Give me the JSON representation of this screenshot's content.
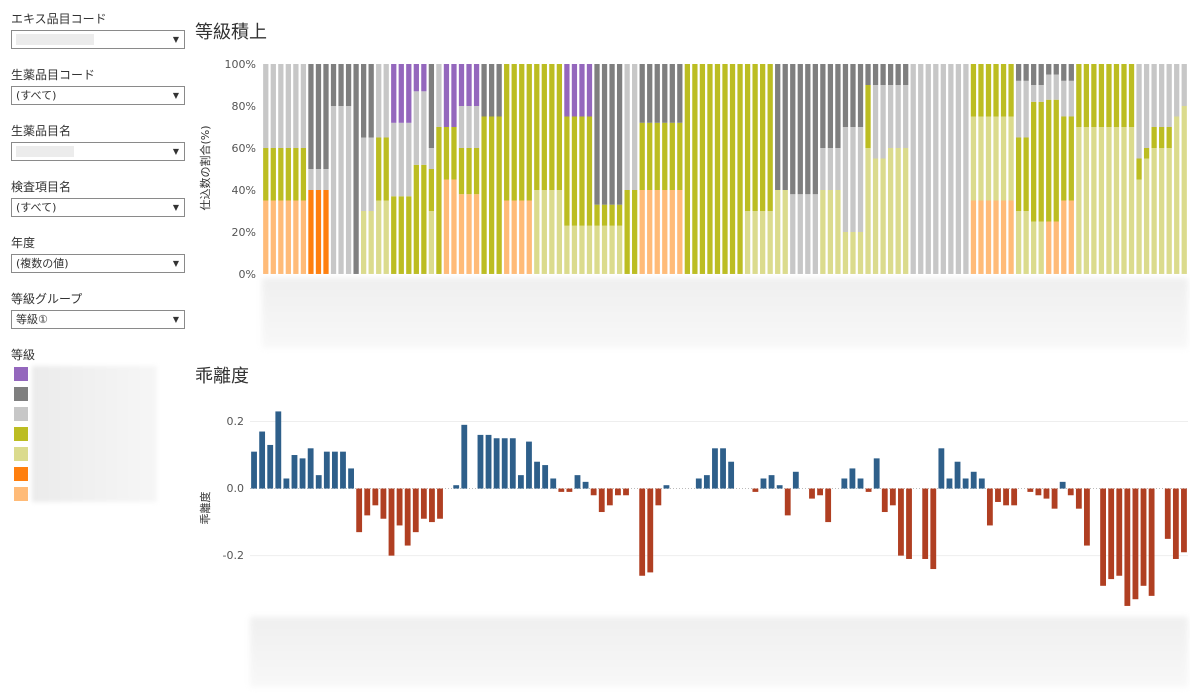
{
  "filters": [
    {
      "label": "エキス品目コード",
      "value": ""
    },
    {
      "label": "生薬品目コード",
      "value": "(すべて)"
    },
    {
      "label": "生薬品目名",
      "value": ""
    },
    {
      "label": "検査項目名",
      "value": "(すべて)"
    },
    {
      "label": "年度",
      "value": "(複数の値)"
    },
    {
      "label": "等級グループ",
      "value": "等級①"
    }
  ],
  "legend": {
    "title": "等級",
    "colors": [
      "#9467bd",
      "#7f7f7f",
      "#c7c7c7",
      "#bcbd22",
      "#dbdb8d",
      "#ff7f0e",
      "#ffbb78"
    ]
  },
  "charts": {
    "stacked": {
      "title": "等級積上",
      "ylabel": "仕込数の割合(%)",
      "yticks": [
        "100%",
        "80%",
        "60%",
        "40%",
        "20%",
        "0%"
      ]
    },
    "deviation": {
      "title": "乖離度",
      "ylabel": "乖離度",
      "yticks": [
        "0.2",
        "0.0",
        "-0.2"
      ]
    }
  },
  "chart_data": [
    {
      "type": "bar",
      "stacked": true,
      "title": "等級積上",
      "ylabel": "仕込数の割合(%)",
      "ylim": [
        0,
        100
      ],
      "series_colors": [
        "#ffbb78",
        "#ff7f0e",
        "#dbdb8d",
        "#bcbd22",
        "#c7c7c7",
        "#7f7f7f",
        "#9467bd"
      ],
      "bars": [
        [
          35,
          0,
          0,
          25,
          40,
          0,
          0
        ],
        [
          35,
          0,
          0,
          25,
          40,
          0,
          0
        ],
        [
          35,
          0,
          0,
          25,
          40,
          0,
          0
        ],
        [
          35,
          0,
          0,
          25,
          40,
          0,
          0
        ],
        [
          35,
          0,
          0,
          25,
          40,
          0,
          0
        ],
        [
          35,
          0,
          0,
          25,
          40,
          0,
          0
        ],
        [
          0,
          40,
          0,
          0,
          10,
          50,
          0
        ],
        [
          0,
          40,
          0,
          0,
          10,
          50,
          0
        ],
        [
          0,
          40,
          0,
          0,
          10,
          50,
          0
        ],
        [
          0,
          0,
          0,
          0,
          80,
          20,
          0
        ],
        [
          0,
          0,
          0,
          0,
          80,
          20,
          0
        ],
        [
          0,
          0,
          0,
          0,
          80,
          20,
          0
        ],
        [
          0,
          0,
          0,
          0,
          0,
          100,
          0
        ],
        [
          0,
          0,
          30,
          0,
          35,
          35,
          0
        ],
        [
          0,
          0,
          30,
          0,
          35,
          35,
          0
        ],
        [
          0,
          0,
          35,
          30,
          35,
          0,
          0
        ],
        [
          0,
          0,
          35,
          30,
          35,
          0,
          0
        ],
        [
          0,
          0,
          0,
          37,
          35,
          0,
          28
        ],
        [
          0,
          0,
          0,
          37,
          35,
          0,
          28
        ],
        [
          0,
          0,
          0,
          37,
          35,
          0,
          28
        ],
        [
          0,
          0,
          0,
          52,
          35,
          0,
          13
        ],
        [
          0,
          0,
          0,
          52,
          35,
          0,
          13
        ],
        [
          0,
          0,
          30,
          20,
          10,
          40,
          0
        ],
        [
          0,
          0,
          0,
          70,
          30,
          0,
          0
        ],
        [
          45,
          0,
          0,
          25,
          0,
          0,
          30
        ],
        [
          45,
          0,
          0,
          25,
          0,
          0,
          30
        ],
        [
          38,
          0,
          0,
          22,
          20,
          0,
          20
        ],
        [
          38,
          0,
          0,
          22,
          20,
          0,
          20
        ],
        [
          38,
          0,
          0,
          22,
          20,
          0,
          20
        ],
        [
          0,
          0,
          0,
          75,
          0,
          25,
          0
        ],
        [
          0,
          0,
          0,
          75,
          0,
          25,
          0
        ],
        [
          0,
          0,
          0,
          75,
          0,
          25,
          0
        ],
        [
          35,
          0,
          0,
          65,
          0,
          0,
          0
        ],
        [
          35,
          0,
          0,
          65,
          0,
          0,
          0
        ],
        [
          35,
          0,
          0,
          65,
          0,
          0,
          0
        ],
        [
          35,
          0,
          0,
          65,
          0,
          0,
          0
        ],
        [
          0,
          0,
          40,
          60,
          0,
          0,
          0
        ],
        [
          0,
          0,
          40,
          60,
          0,
          0,
          0
        ],
        [
          0,
          0,
          40,
          60,
          0,
          0,
          0
        ],
        [
          0,
          0,
          40,
          60,
          0,
          0,
          0
        ],
        [
          0,
          0,
          23,
          52,
          0,
          0,
          25
        ],
        [
          0,
          0,
          23,
          52,
          0,
          0,
          25
        ],
        [
          0,
          0,
          23,
          52,
          0,
          0,
          25
        ],
        [
          0,
          0,
          23,
          52,
          0,
          0,
          25
        ],
        [
          0,
          0,
          23,
          10,
          0,
          67,
          0
        ],
        [
          0,
          0,
          23,
          10,
          0,
          67,
          0
        ],
        [
          0,
          0,
          23,
          10,
          0,
          67,
          0
        ],
        [
          0,
          0,
          23,
          10,
          0,
          67,
          0
        ],
        [
          0,
          0,
          0,
          40,
          60,
          0,
          0
        ],
        [
          0,
          0,
          0,
          40,
          60,
          0,
          0
        ],
        [
          40,
          0,
          0,
          32,
          0,
          28,
          0
        ],
        [
          40,
          0,
          0,
          32,
          0,
          28,
          0
        ],
        [
          40,
          0,
          0,
          32,
          0,
          28,
          0
        ],
        [
          40,
          0,
          0,
          32,
          0,
          28,
          0
        ],
        [
          40,
          0,
          0,
          32,
          0,
          28,
          0
        ],
        [
          40,
          0,
          0,
          32,
          0,
          28,
          0
        ],
        [
          0,
          0,
          0,
          100,
          0,
          0,
          0
        ],
        [
          0,
          0,
          0,
          100,
          0,
          0,
          0
        ],
        [
          0,
          0,
          0,
          100,
          0,
          0,
          0
        ],
        [
          0,
          0,
          0,
          100,
          0,
          0,
          0
        ],
        [
          0,
          0,
          0,
          100,
          0,
          0,
          0
        ],
        [
          0,
          0,
          0,
          100,
          0,
          0,
          0
        ],
        [
          0,
          0,
          0,
          100,
          0,
          0,
          0
        ],
        [
          0,
          0,
          0,
          100,
          0,
          0,
          0
        ],
        [
          0,
          0,
          30,
          70,
          0,
          0,
          0
        ],
        [
          0,
          0,
          30,
          70,
          0,
          0,
          0
        ],
        [
          0,
          0,
          30,
          70,
          0,
          0,
          0
        ],
        [
          0,
          0,
          30,
          70,
          0,
          0,
          0
        ],
        [
          0,
          0,
          40,
          0,
          0,
          60,
          0
        ],
        [
          0,
          0,
          40,
          0,
          0,
          60,
          0
        ],
        [
          0,
          0,
          0,
          0,
          38,
          62,
          0
        ],
        [
          0,
          0,
          0,
          0,
          38,
          62,
          0
        ],
        [
          0,
          0,
          0,
          0,
          38,
          62,
          0
        ],
        [
          0,
          0,
          0,
          0,
          38,
          62,
          0
        ],
        [
          0,
          0,
          40,
          0,
          20,
          40,
          0
        ],
        [
          0,
          0,
          40,
          0,
          20,
          40,
          0
        ],
        [
          0,
          0,
          40,
          0,
          20,
          40,
          0
        ],
        [
          0,
          0,
          20,
          0,
          50,
          30,
          0
        ],
        [
          0,
          0,
          20,
          0,
          50,
          30,
          0
        ],
        [
          0,
          0,
          20,
          0,
          50,
          30,
          0
        ],
        [
          0,
          0,
          60,
          30,
          0,
          10,
          0
        ],
        [
          0,
          0,
          55,
          0,
          35,
          10,
          0
        ],
        [
          0,
          0,
          55,
          0,
          35,
          10,
          0
        ],
        [
          0,
          0,
          60,
          0,
          30,
          10,
          0
        ],
        [
          0,
          0,
          60,
          0,
          30,
          10,
          0
        ],
        [
          0,
          0,
          60,
          0,
          30,
          10,
          0
        ],
        [
          0,
          0,
          0,
          0,
          100,
          0,
          0
        ],
        [
          0,
          0,
          0,
          0,
          100,
          0,
          0
        ],
        [
          0,
          0,
          0,
          0,
          100,
          0,
          0
        ],
        [
          0,
          0,
          0,
          0,
          100,
          0,
          0
        ],
        [
          0,
          0,
          0,
          0,
          100,
          0,
          0
        ],
        [
          0,
          0,
          0,
          0,
          100,
          0,
          0
        ],
        [
          0,
          0,
          0,
          0,
          100,
          0,
          0
        ],
        [
          0,
          0,
          0,
          0,
          100,
          0,
          0
        ],
        [
          35,
          0,
          40,
          25,
          0,
          0,
          0
        ],
        [
          35,
          0,
          40,
          25,
          0,
          0,
          0
        ],
        [
          35,
          0,
          40,
          25,
          0,
          0,
          0
        ],
        [
          35,
          0,
          40,
          25,
          0,
          0,
          0
        ],
        [
          35,
          0,
          40,
          25,
          0,
          0,
          0
        ],
        [
          35,
          0,
          40,
          25,
          0,
          0,
          0
        ],
        [
          0,
          0,
          30,
          35,
          27,
          8,
          0
        ],
        [
          0,
          0,
          30,
          35,
          27,
          8,
          0
        ],
        [
          0,
          0,
          25,
          57,
          8,
          10,
          0
        ],
        [
          0,
          0,
          25,
          57,
          8,
          10,
          0
        ],
        [
          25,
          0,
          0,
          58,
          12,
          5,
          0
        ],
        [
          25,
          0,
          0,
          58,
          12,
          5,
          0
        ],
        [
          35,
          0,
          0,
          40,
          17,
          8,
          0
        ],
        [
          35,
          0,
          0,
          40,
          17,
          8,
          0
        ],
        [
          0,
          0,
          70,
          30,
          0,
          0,
          0
        ],
        [
          0,
          0,
          70,
          30,
          0,
          0,
          0
        ],
        [
          0,
          0,
          70,
          30,
          0,
          0,
          0
        ],
        [
          0,
          0,
          70,
          30,
          0,
          0,
          0
        ],
        [
          0,
          0,
          70,
          30,
          0,
          0,
          0
        ],
        [
          0,
          0,
          70,
          30,
          0,
          0,
          0
        ],
        [
          0,
          0,
          70,
          30,
          0,
          0,
          0
        ],
        [
          0,
          0,
          70,
          30,
          0,
          0,
          0
        ],
        [
          0,
          0,
          45,
          10,
          45,
          0,
          0
        ],
        [
          0,
          0,
          55,
          5,
          40,
          0,
          0
        ],
        [
          0,
          0,
          60,
          10,
          30,
          0,
          0
        ],
        [
          0,
          0,
          60,
          10,
          30,
          0,
          0
        ],
        [
          0,
          0,
          60,
          10,
          30,
          0,
          0
        ],
        [
          0,
          0,
          75,
          0,
          25,
          0,
          0
        ],
        [
          0,
          0,
          80,
          0,
          20,
          0,
          0
        ]
      ]
    },
    {
      "type": "bar",
      "title": "乖離度",
      "ylabel": "乖離度",
      "ylim": [
        -0.38,
        0.27
      ],
      "positive_color": "#2e5f8a",
      "negative_color": "#b03f22",
      "values": [
        0.11,
        0.17,
        0.13,
        0.23,
        0.03,
        0.1,
        0.09,
        0.12,
        0.04,
        0.11,
        0.11,
        0.11,
        0.06,
        -0.13,
        -0.08,
        -0.05,
        -0.09,
        -0.2,
        -0.11,
        -0.17,
        -0.13,
        -0.09,
        -0.1,
        -0.09,
        0.0,
        0.01,
        0.19,
        0.0,
        0.16,
        0.16,
        0.15,
        0.15,
        0.15,
        0.04,
        0.14,
        0.08,
        0.07,
        0.03,
        -0.01,
        -0.01,
        0.04,
        0.02,
        -0.02,
        -0.07,
        -0.05,
        -0.02,
        -0.02,
        0.0,
        -0.26,
        -0.25,
        -0.05,
        0.01,
        0.0,
        0.0,
        0.0,
        0.03,
        0.04,
        0.12,
        0.12,
        0.08,
        0.0,
        0.0,
        -0.01,
        0.03,
        0.04,
        0.01,
        -0.08,
        0.05,
        0.0,
        -0.03,
        -0.02,
        -0.1,
        0.0,
        0.03,
        0.06,
        0.03,
        -0.01,
        0.09,
        -0.07,
        -0.05,
        -0.2,
        -0.21,
        0.0,
        -0.21,
        -0.24,
        0.12,
        0.03,
        0.08,
        0.03,
        0.05,
        0.03,
        -0.11,
        -0.04,
        -0.05,
        -0.05,
        0.0,
        -0.01,
        -0.02,
        -0.03,
        -0.06,
        0.02,
        -0.02,
        -0.06,
        -0.17,
        0.0,
        -0.29,
        -0.27,
        -0.26,
        -0.35,
        -0.33,
        -0.29,
        -0.32,
        0.0,
        -0.15,
        -0.21,
        -0.19
      ]
    }
  ]
}
